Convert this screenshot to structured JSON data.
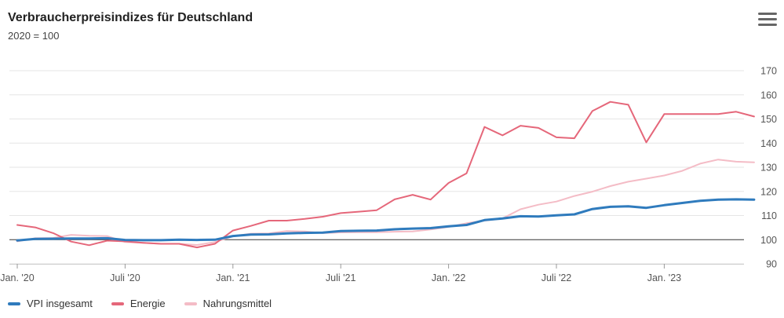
{
  "header": {
    "title": "Verbraucherpreisindizes für Deutschland",
    "subtitle": "2020 = 100",
    "menu_icon": "hamburger-menu-icon"
  },
  "chart_data": {
    "type": "line",
    "title": "Verbraucherpreisindizes für Deutschland",
    "subtitle": "2020 = 100",
    "x": [
      "2020-01",
      "2020-02",
      "2020-03",
      "2020-04",
      "2020-05",
      "2020-06",
      "2020-07",
      "2020-08",
      "2020-09",
      "2020-10",
      "2020-11",
      "2020-12",
      "2021-01",
      "2021-02",
      "2021-03",
      "2021-04",
      "2021-05",
      "2021-06",
      "2021-07",
      "2021-08",
      "2021-09",
      "2021-10",
      "2021-11",
      "2021-12",
      "2022-01",
      "2022-02",
      "2022-03",
      "2022-04",
      "2022-05",
      "2022-06",
      "2022-07",
      "2022-08",
      "2022-09",
      "2022-10",
      "2022-11",
      "2022-12",
      "2023-01",
      "2023-02",
      "2023-03",
      "2023-04",
      "2023-05",
      "2023-06"
    ],
    "x_ticks": [
      {
        "x": "2020-01",
        "label": "Jan. '20"
      },
      {
        "x": "2020-07",
        "label": "Juli '20"
      },
      {
        "x": "2021-01",
        "label": "Jan. '21"
      },
      {
        "x": "2021-07",
        "label": "Juli '21"
      },
      {
        "x": "2022-01",
        "label": "Jan. '22"
      },
      {
        "x": "2022-07",
        "label": "Juli '22"
      },
      {
        "x": "2023-01",
        "label": "Jan. '23"
      }
    ],
    "y_ticks": [
      90,
      100,
      110,
      120,
      130,
      140,
      150,
      160,
      170
    ],
    "ylim": [
      90,
      170
    ],
    "y_axis_position": "right",
    "baseline": 100,
    "grid": true,
    "legend_position": "bottom-left",
    "series": [
      {
        "name": "VPI insgesamt",
        "color": "#2f7bbd",
        "values": [
          99.7,
          100.3,
          100.4,
          100.5,
          100.5,
          100.6,
          99.9,
          99.8,
          99.8,
          100.0,
          99.9,
          100.0,
          101.5,
          102.1,
          102.2,
          102.6,
          102.8,
          102.9,
          103.6,
          103.7,
          103.8,
          104.3,
          104.6,
          104.8,
          105.5,
          106.1,
          108.1,
          108.8,
          109.7,
          109.6,
          110.1,
          110.5,
          112.7,
          113.6,
          113.8,
          113.2,
          114.3,
          115.2,
          116.1,
          116.6,
          116.7,
          116.6
        ]
      },
      {
        "name": "Energie",
        "color": "#e5677a",
        "values": [
          106.1,
          105.1,
          102.7,
          99.2,
          97.7,
          99.6,
          99.3,
          98.7,
          98.3,
          98.3,
          96.8,
          98.3,
          103.8,
          105.7,
          107.9,
          107.9,
          108.6,
          109.5,
          111.0,
          111.6,
          112.2,
          116.7,
          118.6,
          116.6,
          123.5,
          127.5,
          146.7,
          143.2,
          147.2,
          146.3,
          142.4,
          142.0,
          153.3,
          157.1,
          155.9,
          140.3,
          152.0,
          152.0,
          152.0,
          152.0,
          153.0,
          151.0
        ]
      },
      {
        "name": "Nahrungsmittel",
        "color": "#f4bcc6",
        "values": [
          99.3,
          100.6,
          100.7,
          102.0,
          101.6,
          101.5,
          99.0,
          98.7,
          98.3,
          98.3,
          97.8,
          99.0,
          101.4,
          102.5,
          102.6,
          103.6,
          103.4,
          102.7,
          103.0,
          103.1,
          103.1,
          103.3,
          103.4,
          104.2,
          105.3,
          106.8,
          107.9,
          108.8,
          112.6,
          114.5,
          115.8,
          118.1,
          119.9,
          122.2,
          124.0,
          125.3,
          126.6,
          128.5,
          131.5,
          133.2,
          132.3,
          132.0
        ]
      }
    ]
  }
}
